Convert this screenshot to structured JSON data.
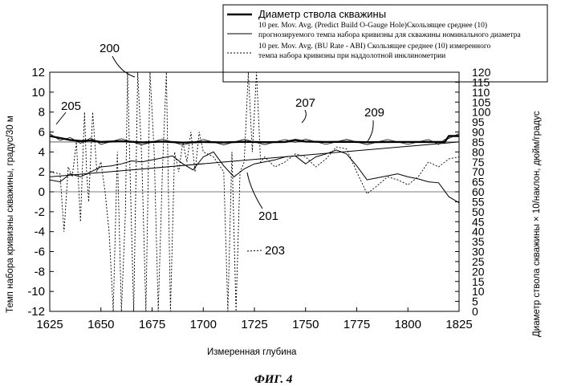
{
  "chart_data": {
    "type": "line",
    "figure_label": "ФИГ. 4",
    "xlabel": "Измеренная глубина",
    "ylabel_left": "Темп набора кривизны скважины, градус/30 м",
    "ylabel_right": "Диаметр ствола скважины × 10/наклон, дюйм/градус",
    "x_ticks": [
      1625,
      1650,
      1675,
      1700,
      1725,
      1750,
      1775,
      1800,
      1825
    ],
    "xlim": [
      1625,
      1825
    ],
    "y_left_ticks": [
      12,
      10,
      8,
      6,
      4,
      2,
      0,
      -2,
      -4,
      -6,
      -8,
      -10,
      -12
    ],
    "ylim_left": [
      -12,
      12
    ],
    "y_right_ticks": [
      120,
      115,
      110,
      105,
      100,
      95,
      90,
      85,
      80,
      75,
      70,
      65,
      60,
      55,
      50,
      45,
      40,
      35,
      30,
      25,
      20,
      15,
      10,
      5,
      0
    ],
    "ylim_right": [
      0,
      120
    ],
    "legend": [
      {
        "style": "thick",
        "text": "Диаметр ствола скважины"
      },
      {
        "style": "thin",
        "text": "10 per. Mov. Avg. (Predict Build O-Gauge Hole)Скользящее среднее (10) прогнозируемого темпа набора кривизны для скважины номинального диаметра"
      },
      {
        "style": "dotted",
        "text": "10 per. Mov. Avg. (BU Rate - ABI) Скользящее среднее (10) измеренного темпа набора кривизны при наддолотной инклинометрии"
      }
    ],
    "references": [
      "200",
      "205",
      "207",
      "209",
      "201",
      "203"
    ],
    "series": [
      {
        "style": "thick",
        "axis": "right",
        "x": [
          1625,
          1630,
          1635,
          1640,
          1645,
          1650,
          1660,
          1670,
          1680,
          1690,
          1700,
          1710,
          1720,
          1730,
          1740,
          1745,
          1750,
          1760,
          1770,
          1780,
          1790,
          1800,
          1810,
          1815,
          1818,
          1820,
          1825
        ],
        "y": [
          88,
          87,
          86,
          85.5,
          85.8,
          85,
          85.4,
          84.8,
          85.2,
          84.7,
          85,
          84.8,
          85.1,
          84.9,
          85,
          86,
          85.2,
          85,
          85.1,
          84.9,
          85,
          85,
          85,
          85,
          85,
          88,
          88
        ]
      },
      {
        "style": "thin",
        "axis": "left",
        "x": [
          1625,
          1630,
          1635,
          1640,
          1645,
          1650,
          1655,
          1660,
          1665,
          1670,
          1675,
          1680,
          1685,
          1690,
          1695,
          1700,
          1705,
          1710,
          1715,
          1720,
          1725,
          1730,
          1735,
          1740,
          1745,
          1750,
          1755,
          1760,
          1765,
          1770,
          1775,
          1780,
          1785,
          1790,
          1795,
          1800,
          1805,
          1810,
          1815,
          1820,
          1825
        ],
        "y": [
          1.2,
          1.0,
          1.8,
          1.5,
          2.0,
          2.5,
          2.6,
          2.8,
          3.1,
          3.0,
          3.2,
          3.4,
          3.6,
          2.8,
          2.2,
          3.5,
          4.0,
          2.6,
          1.5,
          2.3,
          2.8,
          3.0,
          3.2,
          3.5,
          3.6,
          2.8,
          3.5,
          3.8,
          4.2,
          3.8,
          2.6,
          1.2,
          1.4,
          1.6,
          1.8,
          1.5,
          1.3,
          1.0,
          0.9,
          -0.5,
          -1.1
        ]
      },
      {
        "style": "thin",
        "axis": "left",
        "x": [
          1625,
          1825
        ],
        "y": [
          1.5,
          5.0
        ]
      },
      {
        "style": "dotted",
        "axis": "left",
        "x": [
          1625,
          1630,
          1632,
          1634,
          1636,
          1638,
          1640,
          1642,
          1643,
          1644,
          1646,
          1648,
          1650,
          1652,
          1654,
          1656,
          1658,
          1660,
          1662,
          1663,
          1664,
          1666,
          1668,
          1670,
          1672,
          1674,
          1676,
          1678,
          1680,
          1682,
          1684,
          1686,
          1688,
          1690,
          1692,
          1694,
          1696,
          1698,
          1700,
          1705,
          1710,
          1712,
          1714,
          1716,
          1718,
          1720,
          1722,
          1724,
          1726,
          1728,
          1730,
          1735,
          1740,
          1745,
          1750,
          1755,
          1760,
          1765,
          1770,
          1775,
          1780,
          1785,
          1790,
          1795,
          1800,
          1805,
          1810,
          1815,
          1820,
          1825
        ],
        "y": [
          2,
          1.8,
          -4,
          2.5,
          1.5,
          5,
          -3,
          8,
          2,
          -1,
          8,
          2,
          3,
          0,
          -4,
          -12,
          4,
          -12,
          -2,
          12,
          4,
          -12,
          12,
          3,
          -12,
          12,
          4,
          -12,
          2,
          12,
          -12,
          4,
          2,
          5,
          3,
          6,
          2,
          6,
          4,
          3.5,
          2,
          -12,
          4,
          -12,
          2,
          3,
          12,
          4,
          12,
          3,
          3.5,
          2.5,
          3,
          3.8,
          3.5,
          2.5,
          3.3,
          4.5,
          4.3,
          2,
          -0.2,
          0.6,
          1.5,
          1.2,
          0.7,
          1.5,
          3,
          2.5,
          3.3,
          3.5
        ]
      }
    ]
  }
}
